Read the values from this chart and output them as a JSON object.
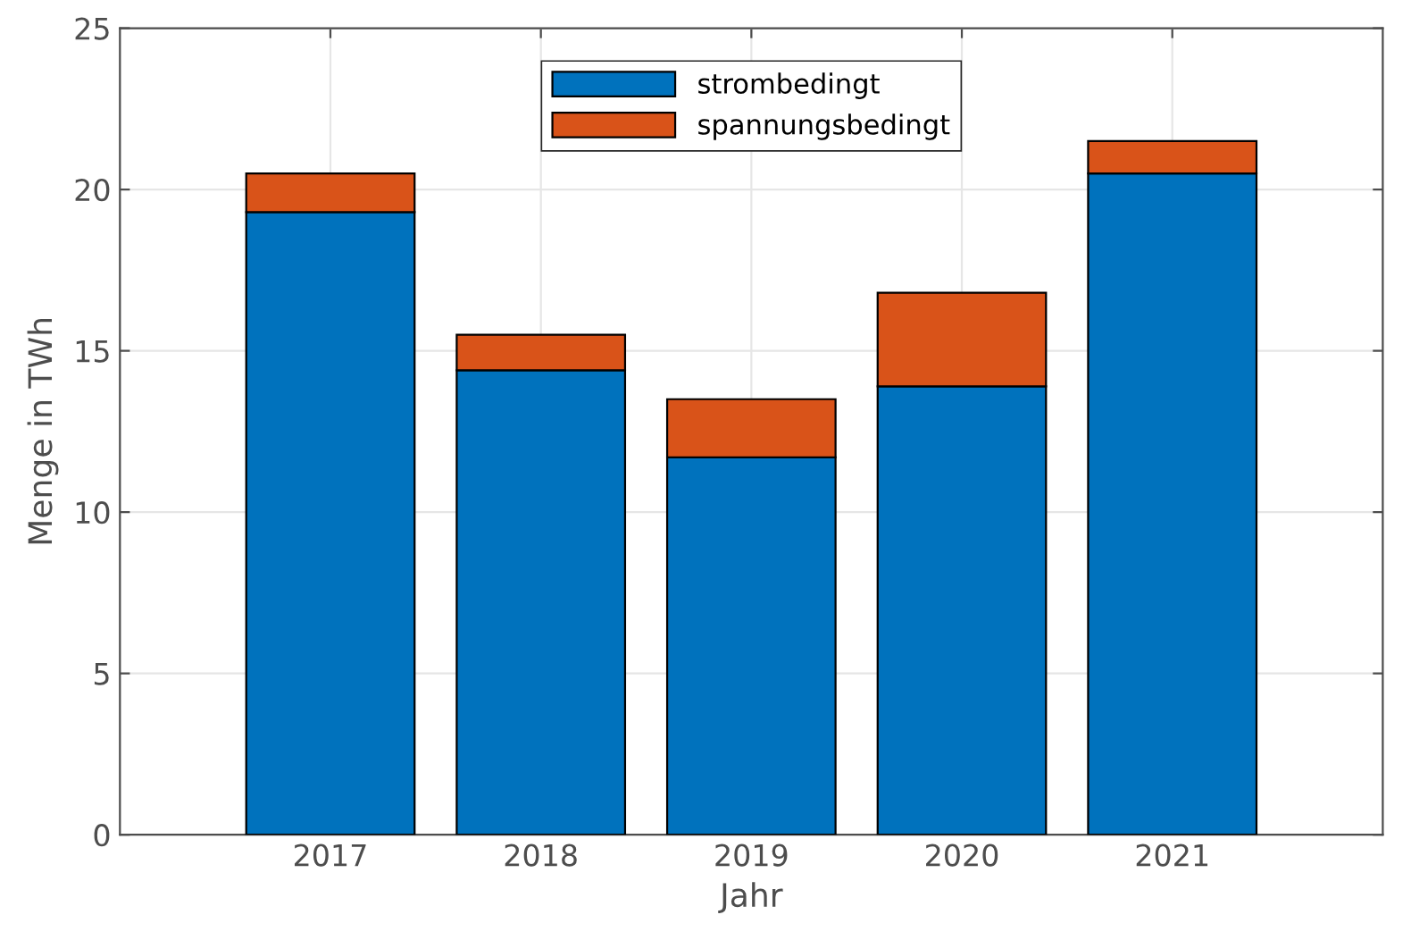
{
  "chart_data": {
    "type": "bar",
    "stacked": true,
    "xlabel": "Jahr",
    "ylabel": "Menge in TWh",
    "x": [
      2017,
      2018,
      2019,
      2020,
      2021
    ],
    "series": [
      {
        "name": "strombedingt",
        "color": "#0072bd",
        "values": [
          19.3,
          14.4,
          11.7,
          13.9,
          20.5
        ]
      },
      {
        "name": "spannungsbedingt",
        "color": "#d95319",
        "values": [
          1.2,
          1.1,
          1.8,
          2.9,
          1.0
        ]
      }
    ],
    "xlim": [
      2016,
      2022
    ],
    "xticks": [
      2017,
      2018,
      2019,
      2020,
      2021
    ],
    "ylim": [
      0,
      25
    ],
    "yticks": [
      0,
      5,
      10,
      15,
      20,
      25
    ],
    "grid": true,
    "legend": "top"
  }
}
